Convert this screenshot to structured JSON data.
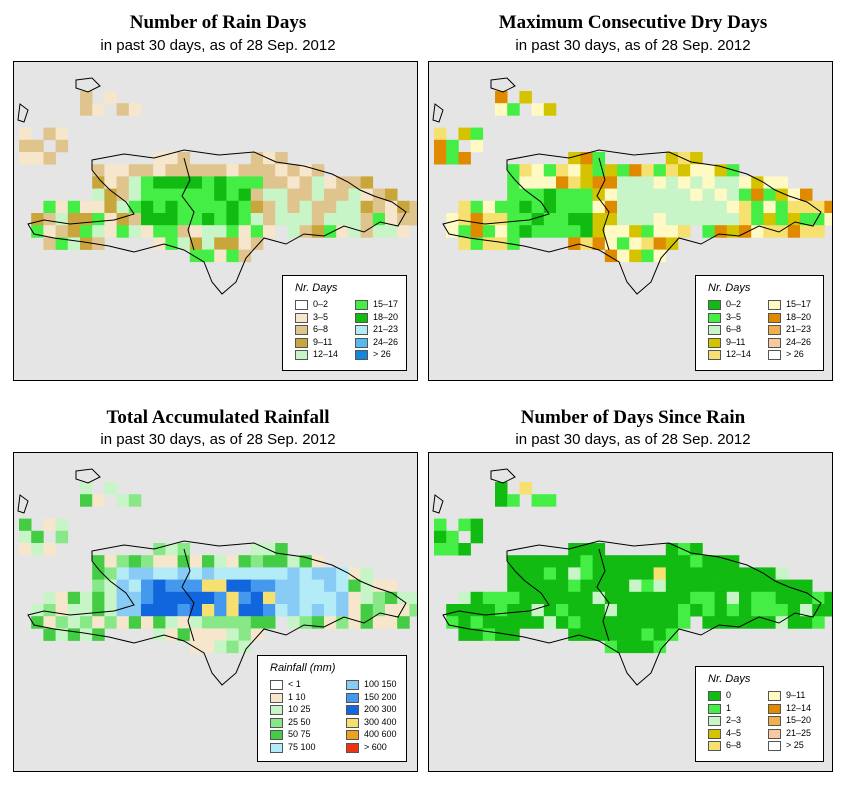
{
  "panels": [
    {
      "id": "rain-days",
      "title": "Number of Rain Days",
      "subtitle": "in past 30 days, as of  28 Sep. 2012",
      "legend": {
        "title": "Nr. Days",
        "col1": [
          {
            "label": "0–2",
            "color": "#ffffff"
          },
          {
            "label": "3–5",
            "color": "#f5e6cc"
          },
          {
            "label": "6–8",
            "color": "#e0c48e"
          },
          {
            "label": "9–11",
            "color": "#c9a63c"
          },
          {
            "label": "12–14",
            "color": "#c8f5c8"
          }
        ],
        "col2": [
          {
            "label": "15–17",
            "color": "#44ee44"
          },
          {
            "label": "18–20",
            "color": "#11bb11"
          },
          {
            "label": "21–23",
            "color": "#b3ecf7"
          },
          {
            "label": "24–26",
            "color": "#55bbee"
          },
          {
            "label": "> 26",
            "color": "#1188dd"
          }
        ]
      }
    },
    {
      "id": "dry-days",
      "title": "Maximum Consecutive Dry Days",
      "subtitle": "in past 30 days, as of  28 Sep. 2012",
      "legend": {
        "title": "Nr. Days",
        "col1": [
          {
            "label": "0–2",
            "color": "#11bb11"
          },
          {
            "label": "3–5",
            "color": "#44ee44"
          },
          {
            "label": "6–8",
            "color": "#c8f5c8"
          },
          {
            "label": "9–11",
            "color": "#d4c400"
          },
          {
            "label": "12–14",
            "color": "#f5e070"
          }
        ],
        "col2": [
          {
            "label": "15–17",
            "color": "#fff9c4"
          },
          {
            "label": "18–20",
            "color": "#e08a00"
          },
          {
            "label": "21–23",
            "color": "#f0b050"
          },
          {
            "label": "24–26",
            "color": "#f8c8a0"
          },
          {
            "label": "> 26",
            "color": "#ffffff"
          }
        ]
      }
    },
    {
      "id": "rainfall",
      "title": "Total Accumulated Rainfall",
      "subtitle": "in past 30 days, as of  28 Sep. 2012",
      "legend": {
        "title": "Rainfall (mm)",
        "col1": [
          {
            "label": "< 1",
            "color": "#ffffff"
          },
          {
            "label": "1      10",
            "color": "#f5e6cc"
          },
          {
            "label": "10     25",
            "color": "#c8f5c8"
          },
          {
            "label": "25     50",
            "color": "#88e888"
          },
          {
            "label": "50     75",
            "color": "#44cc44"
          },
          {
            "label": "75   100",
            "color": "#b3ecf7"
          }
        ],
        "col2": [
          {
            "label": "100   150",
            "color": "#88ccf5"
          },
          {
            "label": "150   200",
            "color": "#4499ee"
          },
          {
            "label": "200   300",
            "color": "#1166dd"
          },
          {
            "label": "300   400",
            "color": "#f5e070"
          },
          {
            "label": "400   600",
            "color": "#f0a020"
          },
          {
            "label": "> 600",
            "color": "#ee3311"
          }
        ]
      }
    },
    {
      "id": "days-since",
      "title": "Number of Days Since Rain",
      "subtitle": "in past 30 days, as of  28 Sep. 2012",
      "legend": {
        "title": "Nr. Days",
        "col1": [
          {
            "label": "0",
            "color": "#11bb11"
          },
          {
            "label": "1",
            "color": "#44ee44"
          },
          {
            "label": "2–3",
            "color": "#c8f5c8"
          },
          {
            "label": "4–5",
            "color": "#d4c400"
          },
          {
            "label": "6–8",
            "color": "#f5e070"
          }
        ],
        "col2": [
          {
            "label": "9–11",
            "color": "#fff9c4"
          },
          {
            "label": "12–14",
            "color": "#e08a00"
          },
          {
            "label": "15–20",
            "color": "#f0b050"
          },
          {
            "label": "21–25",
            "color": "#f8c8a0"
          },
          {
            "label": "> 25",
            "color": "#ffffff"
          }
        ]
      }
    }
  ]
}
